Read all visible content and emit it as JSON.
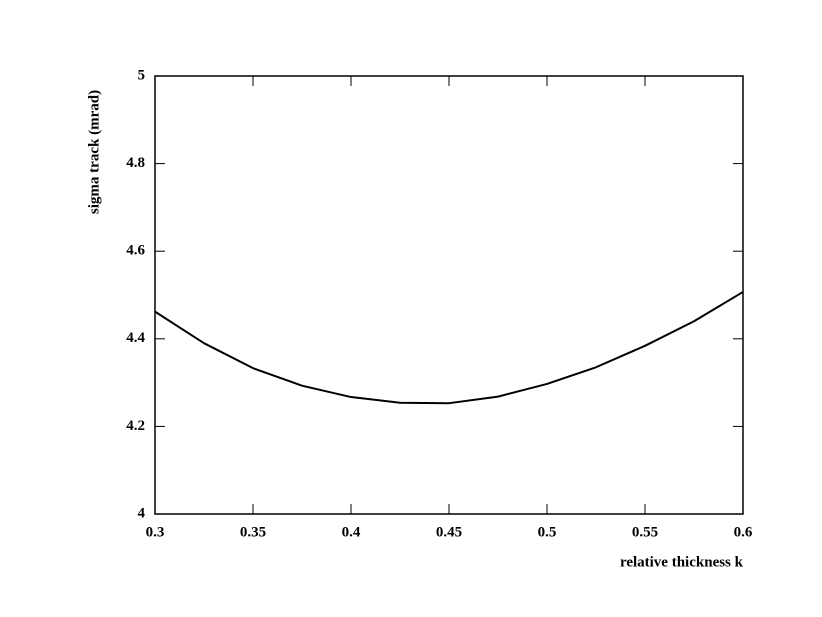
{
  "chart_data": {
    "type": "line",
    "x_label": "relative thickness k",
    "y_label": "sigma track (mrad)",
    "x": [
      0.3,
      0.325,
      0.35,
      0.375,
      0.4,
      0.425,
      0.45,
      0.475,
      0.5,
      0.525,
      0.55,
      0.575,
      0.6
    ],
    "values": [
      4.462,
      4.39,
      4.333,
      4.293,
      4.267,
      4.254,
      4.253,
      4.268,
      4.297,
      4.335,
      4.384,
      4.44,
      4.507
    ],
    "color": "#000000",
    "xlim": [
      0.3,
      0.6
    ],
    "xticks": [
      0.3,
      0.35,
      0.4,
      0.45,
      0.5,
      0.55,
      0.6
    ],
    "ylim": [
      4,
      5
    ],
    "yticks": [
      4,
      4.2,
      4.4,
      4.6,
      4.8,
      5
    ]
  }
}
